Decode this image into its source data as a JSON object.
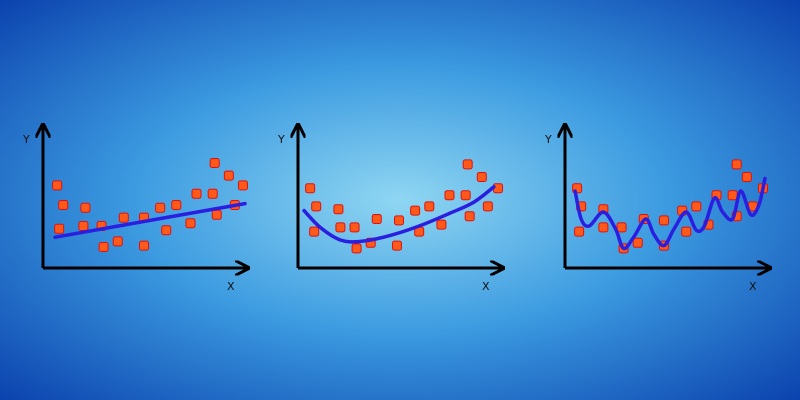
{
  "chart_data": [
    {
      "type": "scatter",
      "x_label": "X",
      "y_label": "Y",
      "xlim": [
        0,
        100
      ],
      "ylim": [
        0,
        100
      ],
      "points": {
        "color": "#ff5a1a",
        "x": [
          7,
          10,
          8,
          21,
          20,
          30,
          29,
          37,
          40,
          50,
          50,
          58,
          61,
          66,
          73,
          76,
          84,
          85,
          86,
          92,
          95,
          99
        ],
        "values": [
          59,
          45,
          28,
          43,
          30,
          15,
          30,
          19,
          36,
          16,
          36,
          43,
          27,
          45,
          32,
          53,
          53,
          75,
          38,
          66,
          45,
          59
        ]
      },
      "curve": {
        "color": "#2a1ee0",
        "x": [
          6,
          100
        ],
        "values": [
          22,
          46
        ]
      }
    },
    {
      "type": "scatter",
      "x_label": "X",
      "y_label": "Y",
      "xlim": [
        0,
        100
      ],
      "ylim": [
        0,
        100
      ],
      "points": {
        "color": "#ff5a1a",
        "x": [
          6,
          9,
          8,
          20,
          21,
          29,
          28,
          36,
          39,
          49,
          50,
          58,
          60,
          65,
          71,
          75,
          83,
          84,
          85,
          91,
          94,
          99
        ],
        "values": [
          57,
          44,
          26,
          42,
          29,
          14,
          29,
          18,
          35,
          16,
          34,
          41,
          26,
          44,
          31,
          52,
          52,
          74,
          37,
          65,
          44,
          57
        ]
      },
      "curve": {
        "color": "#2a1ee0",
        "x": [
          3,
          11,
          21,
          31,
          45,
          60,
          75,
          87,
          97
        ],
        "values": [
          41,
          29,
          20,
          19,
          23,
          30,
          39,
          47,
          58
        ]
      }
    },
    {
      "type": "scatter",
      "x_label": "X",
      "y_label": "Y",
      "xlim": [
        0,
        100
      ],
      "ylim": [
        0,
        100
      ],
      "points": {
        "color": "#ff5a1a",
        "x": [
          6,
          8,
          7,
          19,
          19,
          29,
          28,
          36,
          39,
          49,
          49,
          58,
          60,
          65,
          71,
          75,
          83,
          85,
          85,
          90,
          93,
          98
        ],
        "values": [
          57,
          44,
          26,
          42,
          29,
          14,
          29,
          18,
          35,
          16,
          34,
          41,
          26,
          44,
          31,
          52,
          52,
          74,
          37,
          65,
          44,
          57
        ]
      },
      "curve": {
        "color": "#2a1ee0",
        "x": [
          5,
          8,
          12,
          19,
          25,
          29,
          34,
          40,
          44,
          49,
          54,
          60,
          65,
          69,
          74,
          78,
          83,
          87,
          92,
          96,
          99
        ],
        "values": [
          55,
          35,
          30,
          40,
          28,
          14,
          22,
          35,
          24,
          16,
          28,
          40,
          27,
          30,
          50,
          40,
          35,
          55,
          38,
          45,
          64
        ]
      }
    }
  ]
}
